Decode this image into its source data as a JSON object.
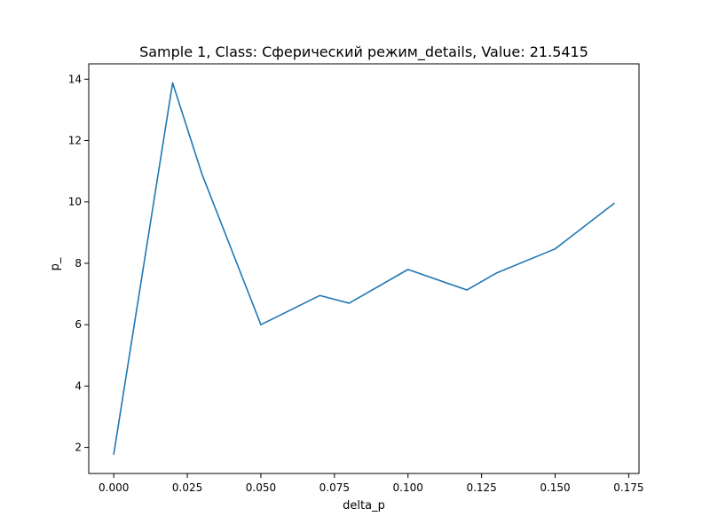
{
  "chart_data": {
    "type": "line",
    "title": "Sample 1, Class: Сферический режим_details, Value: 21.5415",
    "xlabel": "delta_p",
    "ylabel": "p_",
    "xlim": [
      -0.0085,
      0.1785
    ],
    "ylim": [
      1.15,
      14.5
    ],
    "grid": false,
    "x_ticks": [
      0.0,
      0.025,
      0.05,
      0.075,
      0.1,
      0.125,
      0.15,
      0.175
    ],
    "x_tick_labels": [
      "0.000",
      "0.025",
      "0.050",
      "0.075",
      "0.100",
      "0.125",
      "0.150",
      "0.175"
    ],
    "y_ticks": [
      2,
      4,
      6,
      8,
      10,
      12,
      14
    ],
    "y_tick_labels": [
      "2",
      "4",
      "6",
      "8",
      "10",
      "12",
      "14"
    ],
    "series": [
      {
        "color": "#1f77b4",
        "x": [
          0.0,
          0.02,
          0.03,
          0.04,
          0.05,
          0.07,
          0.08,
          0.1,
          0.12,
          0.13,
          0.15,
          0.17
        ],
        "y": [
          1.78,
          13.88,
          10.9,
          8.45,
          6.0,
          6.95,
          6.7,
          7.8,
          7.13,
          7.68,
          8.47,
          9.95
        ]
      }
    ]
  }
}
